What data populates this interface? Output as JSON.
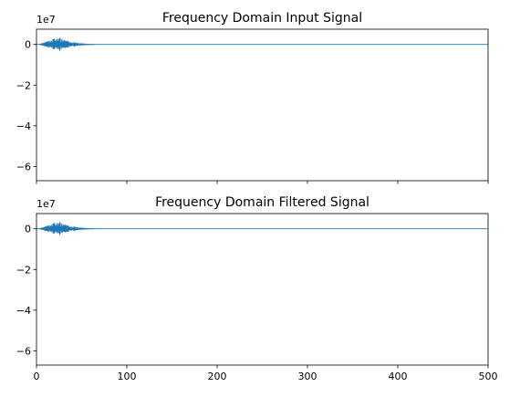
{
  "chart_data": [
    {
      "type": "line",
      "title": "Frequency Domain Input Signal",
      "xlabel": "",
      "ylabel": "",
      "xlim": [
        0,
        500
      ],
      "ylim": [
        -67000000,
        7500000
      ],
      "y_offset_label": "1e7",
      "x_ticks": [
        0,
        100,
        200,
        300,
        400,
        500
      ],
      "x_tick_labels_visible": false,
      "y_ticks": [
        -60000000,
        -40000000,
        -20000000,
        0
      ],
      "y_tick_labels": [
        "−6",
        "−4",
        "−2",
        "0"
      ],
      "series_color": "#1f77b4",
      "signal": {
        "x_start": 0,
        "x_end": 500,
        "burst_start": 2,
        "burst_peak": 25,
        "burst_end": 100,
        "peak_amplitude": 3700000
      },
      "grid": false
    },
    {
      "type": "line",
      "title": "Frequency Domain Filtered Signal",
      "xlabel": "",
      "ylabel": "",
      "xlim": [
        0,
        500
      ],
      "ylim": [
        -67000000,
        7500000
      ],
      "y_offset_label": "1e7",
      "x_ticks": [
        0,
        100,
        200,
        300,
        400,
        500
      ],
      "x_tick_labels": [
        "0",
        "100",
        "200",
        "300",
        "400",
        "500"
      ],
      "x_tick_labels_visible": true,
      "y_ticks": [
        -60000000,
        -40000000,
        -20000000,
        0
      ],
      "y_tick_labels": [
        "−6",
        "−4",
        "−2",
        "0"
      ],
      "series_color": "#1f77b4",
      "signal": {
        "x_start": 0,
        "x_end": 500,
        "burst_start": 2,
        "burst_peak": 25,
        "burst_end": 100,
        "peak_amplitude": 3700000
      },
      "grid": false
    }
  ]
}
